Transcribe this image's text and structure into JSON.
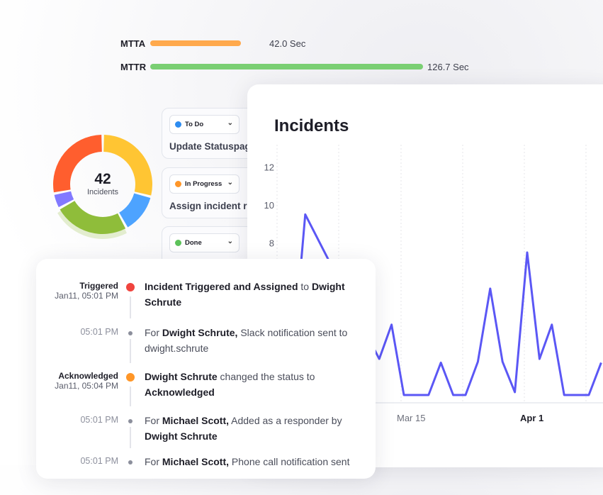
{
  "metrics": [
    {
      "label": "MTTA",
      "value": "42.0 Sec",
      "seconds": 42.0,
      "color": "#FFA94D"
    },
    {
      "label": "MTTR",
      "value": "126.7 Sec",
      "seconds": 126.7,
      "color": "#7ACF73"
    }
  ],
  "donut": {
    "count": "42",
    "label": "Incidents",
    "segments": [
      {
        "color": "#FFC533",
        "share": 29
      },
      {
        "color": "#4DA3FF",
        "share": 13
      },
      {
        "color": "#8FBD3A",
        "share": 25
      },
      {
        "color": "#8279FF",
        "share": 5
      },
      {
        "color": "#FF5E2E",
        "share": 28
      }
    ]
  },
  "status_cards": [
    {
      "status": "To Do",
      "color": "#2D8CF0",
      "title": "Update Statuspag"
    },
    {
      "status": "In Progress",
      "color": "#FF9628",
      "title": "Assign incident ro"
    },
    {
      "status": "Done",
      "color": "#5DC25A",
      "title": ""
    }
  ],
  "chart_data": {
    "type": "line",
    "title": "Incidents",
    "xlabel": "",
    "ylabel": "",
    "color": "#5B57F5",
    "y_ticks": [
      8,
      10,
      12
    ],
    "x_ticks": [
      {
        "label": "Mar 15",
        "x": 0,
        "highlight": false
      },
      {
        "label": "Apr 1",
        "x": 10,
        "highlight": true
      }
    ],
    "grid": "vertical-dashed",
    "x": [
      -9,
      -8,
      -2,
      -1,
      0,
      1,
      2,
      3,
      4,
      5,
      6,
      7,
      8,
      9,
      10,
      11,
      12,
      13,
      14,
      15,
      16
    ],
    "y": [
      2,
      9.5,
      1.9,
      3.7,
      0,
      0,
      0,
      1.7,
      0,
      0,
      1.75,
      5.6,
      1.75,
      0.15,
      7.5,
      1.9,
      3.7,
      0,
      0,
      0,
      1.7
    ]
  },
  "timeline": [
    {
      "status": "Triggered",
      "time": "Jan11, 05:01 PM",
      "dot": "#F0443E",
      "major": true,
      "parts": [
        [
          "b",
          "Incident Triggered and Assigned"
        ],
        [
          "t",
          " to "
        ],
        [
          "b",
          "Dwight Schrute"
        ]
      ]
    },
    {
      "status": "",
      "time": "05:01 PM",
      "dot": "#8C8F9C",
      "major": false,
      "parts": [
        [
          "t",
          "For "
        ],
        [
          "b",
          "Dwight Schrute,"
        ],
        [
          "t",
          " Slack notification sent to dwight.schrute"
        ]
      ]
    },
    {
      "status": "Acknowledged",
      "time": "Jan11, 05:04 PM",
      "dot": "#FF9628",
      "major": true,
      "parts": [
        [
          "b",
          "Dwight Schrute"
        ],
        [
          "t",
          " changed the status to "
        ],
        [
          "b",
          "Acknowledged"
        ]
      ]
    },
    {
      "status": "",
      "time": "05:01 PM",
      "dot": "#8C8F9C",
      "major": false,
      "parts": [
        [
          "t",
          "For "
        ],
        [
          "b",
          "Michael Scott,"
        ],
        [
          "t",
          " Added as a responder by "
        ],
        [
          "b",
          "Dwight Schrute"
        ]
      ]
    },
    {
      "status": "",
      "time": "05:01 PM",
      "dot": "#8C8F9C",
      "major": false,
      "parts": [
        [
          "t",
          "For "
        ],
        [
          "b",
          "Michael Scott,"
        ],
        [
          "t",
          " Phone call notification sent"
        ]
      ]
    }
  ]
}
